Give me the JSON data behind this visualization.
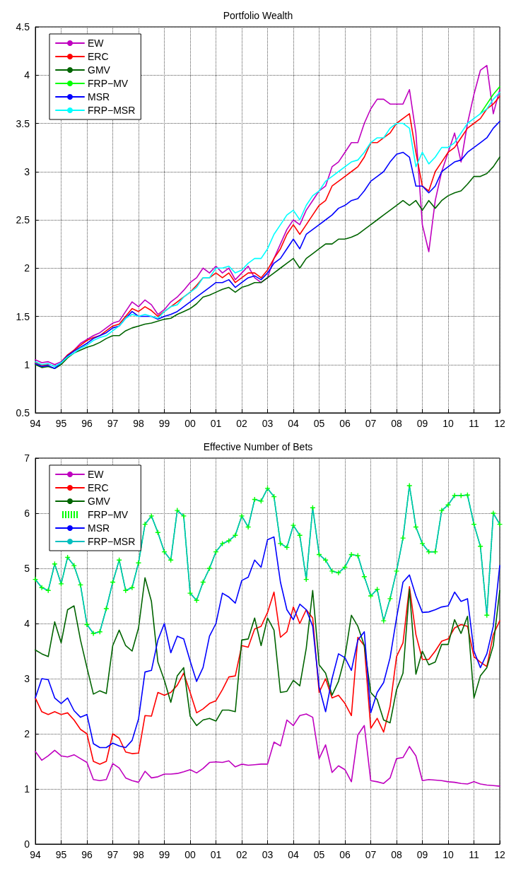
{
  "chart_data": [
    {
      "type": "line",
      "title": "Portfolio Wealth",
      "x": [
        1994,
        1994.25,
        1994.5,
        1994.75,
        1995,
        1995.25,
        1995.5,
        1995.75,
        1996,
        1996.25,
        1996.5,
        1996.75,
        1997,
        1997.25,
        1997.5,
        1997.75,
        1998,
        1998.25,
        1998.5,
        1998.75,
        1999,
        1999.25,
        1999.5,
        1999.75,
        2000,
        2000.25,
        2000.5,
        2000.75,
        2001,
        2001.25,
        2001.5,
        2001.75,
        2002,
        2002.25,
        2002.5,
        2002.75,
        2003,
        2003.25,
        2003.5,
        2003.75,
        2004,
        2004.25,
        2004.5,
        2004.75,
        2005,
        2005.25,
        2005.5,
        2005.75,
        2006,
        2006.25,
        2006.5,
        2006.75,
        2007,
        2007.25,
        2007.5,
        2007.75,
        2008,
        2008.25,
        2008.5,
        2008.75,
        2009,
        2009.25,
        2009.5,
        2009.75,
        2010,
        2010.25,
        2010.5,
        2010.75,
        2011,
        2011.25,
        2011.5,
        2011.75,
        2012
      ],
      "series": [
        {
          "name": "EW",
          "color": "#bf00bf",
          "values": [
            1.05,
            1.02,
            1.03,
            1.0,
            1.03,
            1.1,
            1.15,
            1.22,
            1.26,
            1.3,
            1.33,
            1.38,
            1.43,
            1.45,
            1.55,
            1.65,
            1.6,
            1.67,
            1.62,
            1.52,
            1.57,
            1.65,
            1.7,
            1.77,
            1.85,
            1.9,
            2.0,
            1.95,
            2.02,
            1.95,
            2.0,
            1.88,
            1.95,
            2.02,
            1.9,
            1.85,
            1.9,
            2.1,
            2.25,
            2.4,
            2.5,
            2.45,
            2.6,
            2.7,
            2.8,
            2.85,
            3.05,
            3.1,
            3.2,
            3.3,
            3.3,
            3.5,
            3.65,
            3.75,
            3.75,
            3.7,
            3.7,
            3.7,
            3.85,
            3.4,
            2.45,
            2.17,
            2.7,
            3.0,
            3.2,
            3.4,
            3.1,
            3.5,
            3.8,
            4.05,
            4.1,
            3.6,
            3.85
          ]
        },
        {
          "name": "ERC",
          "color": "#ff0000",
          "values": [
            1.02,
            0.99,
            1.0,
            null,
            1.02,
            1.1,
            1.15,
            1.2,
            1.25,
            1.28,
            1.3,
            1.35,
            1.4,
            1.42,
            1.5,
            1.58,
            1.55,
            1.6,
            1.56,
            1.5,
            1.55,
            1.6,
            1.65,
            1.7,
            1.75,
            1.82,
            1.9,
            1.9,
            1.95,
            1.9,
            1.95,
            1.85,
            1.9,
            1.95,
            1.95,
            1.9,
            1.98,
            2.1,
            2.2,
            2.35,
            2.45,
            2.35,
            2.45,
            2.55,
            2.65,
            2.7,
            2.85,
            2.9,
            2.95,
            3.0,
            3.05,
            3.15,
            3.3,
            3.3,
            3.35,
            3.4,
            3.5,
            3.55,
            3.6,
            3.2,
            2.85,
            2.8,
            3.0,
            3.1,
            3.2,
            3.25,
            3.35,
            3.45,
            3.5,
            3.55,
            3.65,
            3.7,
            3.78
          ]
        },
        {
          "name": "GMV",
          "color": "#006400",
          "values": [
            1.0,
            0.97,
            0.98,
            0.96,
            1.0,
            1.07,
            1.12,
            1.15,
            1.18,
            1.2,
            1.23,
            1.27,
            1.3,
            1.3,
            1.35,
            1.38,
            1.4,
            1.42,
            1.43,
            1.45,
            1.47,
            1.48,
            1.52,
            1.55,
            1.58,
            1.63,
            1.7,
            1.72,
            1.75,
            1.78,
            1.8,
            1.75,
            1.8,
            1.82,
            1.85,
            1.85,
            1.9,
            1.95,
            2.0,
            2.05,
            2.1,
            2.0,
            2.1,
            2.15,
            2.2,
            2.25,
            2.25,
            2.3,
            2.3,
            2.32,
            2.35,
            2.4,
            2.45,
            2.5,
            2.55,
            2.6,
            2.65,
            2.7,
            2.65,
            2.7,
            2.6,
            2.7,
            2.62,
            2.7,
            2.75,
            2.78,
            2.8,
            2.87,
            2.95,
            2.95,
            2.98,
            3.05,
            3.15
          ]
        },
        {
          "name": "FRP−MV",
          "color": "#00ff00",
          "values": [
            null,
            null,
            null,
            null,
            null,
            null,
            null,
            null,
            null,
            null,
            null,
            null,
            null,
            null,
            null,
            null,
            null,
            null,
            null,
            null,
            null,
            null,
            null,
            null,
            null,
            null,
            null,
            null,
            null,
            null,
            null,
            null,
            null,
            null,
            null,
            null,
            null,
            null,
            null,
            null,
            null,
            null,
            null,
            null,
            null,
            null,
            null,
            null,
            null,
            null,
            null,
            null,
            null,
            null,
            null,
            null,
            null,
            null,
            null,
            null,
            null,
            null,
            null,
            null,
            null,
            null,
            null,
            null,
            null,
            3.6,
            3.7,
            3.8,
            3.88
          ]
        },
        {
          "name": "MSR",
          "color": "#0000ff",
          "values": [
            1.01,
            0.98,
            0.99,
            0.96,
            1.02,
            1.09,
            1.14,
            1.18,
            1.22,
            1.27,
            1.3,
            1.33,
            1.38,
            1.4,
            1.48,
            1.55,
            1.5,
            1.5,
            1.5,
            1.47,
            1.5,
            1.52,
            1.55,
            1.6,
            1.65,
            1.7,
            1.75,
            1.8,
            1.85,
            1.85,
            1.88,
            1.8,
            1.85,
            1.9,
            1.92,
            1.88,
            1.95,
            2.05,
            2.1,
            2.2,
            2.3,
            2.2,
            2.35,
            2.4,
            2.45,
            2.5,
            2.55,
            2.62,
            2.65,
            2.7,
            2.72,
            2.8,
            2.9,
            2.95,
            3.0,
            3.1,
            3.18,
            3.2,
            3.15,
            2.85,
            2.85,
            2.78,
            2.85,
            3.0,
            3.05,
            3.1,
            3.12,
            3.2,
            3.25,
            3.3,
            3.35,
            3.45,
            3.52
          ]
        },
        {
          "name": "FRP−MSR",
          "color": "#00ffff",
          "values": [
            1.03,
            1.0,
            1.01,
            0.98,
            1.02,
            1.08,
            1.12,
            1.17,
            1.2,
            1.25,
            1.28,
            1.3,
            1.35,
            1.4,
            1.48,
            1.52,
            1.5,
            1.52,
            1.5,
            1.48,
            1.55,
            1.6,
            1.62,
            1.7,
            1.75,
            1.8,
            1.9,
            1.9,
            2.0,
            2.0,
            2.02,
            1.95,
            1.98,
            2.05,
            2.1,
            2.1,
            2.2,
            2.35,
            2.45,
            2.55,
            2.6,
            2.5,
            2.65,
            2.75,
            2.8,
            2.9,
            2.95,
            3.0,
            3.05,
            3.1,
            3.12,
            3.2,
            3.3,
            3.35,
            3.35,
            3.45,
            3.5,
            3.5,
            3.45,
            3.05,
            3.2,
            3.08,
            3.15,
            3.25,
            3.25,
            3.3,
            3.4,
            3.5,
            3.55,
            3.6,
            3.65,
            3.75,
            3.82
          ]
        }
      ],
      "xlim": [
        1994,
        2012
      ],
      "xticks": [
        {
          "value": 1994,
          "label": "94"
        },
        {
          "value": 1995,
          "label": "95"
        },
        {
          "value": 1996,
          "label": "96"
        },
        {
          "value": 1997,
          "label": "97"
        },
        {
          "value": 1998,
          "label": "98"
        },
        {
          "value": 1999,
          "label": "99"
        },
        {
          "value": 2000,
          "label": "00"
        },
        {
          "value": 2001,
          "label": "01"
        },
        {
          "value": 2002,
          "label": "02"
        },
        {
          "value": 2003,
          "label": "03"
        },
        {
          "value": 2004,
          "label": "04"
        },
        {
          "value": 2005,
          "label": "05"
        },
        {
          "value": 2006,
          "label": "06"
        },
        {
          "value": 2007,
          "label": "07"
        },
        {
          "value": 2008,
          "label": "08"
        },
        {
          "value": 2009,
          "label": "09"
        },
        {
          "value": 2010,
          "label": "10"
        },
        {
          "value": 2011,
          "label": "11"
        },
        {
          "value": 2012,
          "label": "12"
        }
      ],
      "ylim": [
        0.5,
        4.5
      ],
      "yticks": [
        0.5,
        1,
        1.5,
        2,
        2.5,
        3,
        3.5,
        4,
        4.5
      ],
      "grid": true,
      "legend": "top left",
      "marker": "none",
      "line_style": "solid"
    },
    {
      "type": "line",
      "title": "Effective Number of Bets",
      "x": [
        1994,
        1994.25,
        1994.5,
        1994.75,
        1995,
        1995.25,
        1995.5,
        1995.75,
        1996,
        1996.25,
        1996.5,
        1996.75,
        1997,
        1997.25,
        1997.5,
        1997.75,
        1998,
        1998.25,
        1998.5,
        1998.75,
        1999,
        1999.25,
        1999.5,
        1999.75,
        2000,
        2000.25,
        2000.5,
        2000.75,
        2001,
        2001.25,
        2001.5,
        2001.75,
        2002,
        2002.25,
        2002.5,
        2002.75,
        2003,
        2003.25,
        2003.5,
        2003.75,
        2004,
        2004.25,
        2004.5,
        2004.75,
        2005,
        2005.25,
        2005.5,
        2005.75,
        2006,
        2006.25,
        2006.5,
        2006.75,
        2007,
        2007.25,
        2007.5,
        2007.75,
        2008,
        2008.25,
        2008.5,
        2008.75,
        2009,
        2009.25,
        2009.5,
        2009.75,
        2010,
        2010.25,
        2010.5,
        2010.75,
        2011,
        2011.25,
        2011.5,
        2011.75,
        2012
      ],
      "series": [
        {
          "name": "EW",
          "color": "#bf00bf",
          "values": [
            1.68,
            1.52,
            1.6,
            1.7,
            1.6,
            1.58,
            1.62,
            1.55,
            1.48,
            1.17,
            1.15,
            1.17,
            1.46,
            1.38,
            1.2,
            1.15,
            1.12,
            1.32,
            1.2,
            1.22,
            1.27,
            1.27,
            1.28,
            1.31,
            1.35,
            1.29,
            1.37,
            1.48,
            1.49,
            1.48,
            1.51,
            1.4,
            1.45,
            1.43,
            1.44,
            1.45,
            1.45,
            1.85,
            1.78,
            2.25,
            2.15,
            2.33,
            2.36,
            2.3,
            1.55,
            1.8,
            1.3,
            1.42,
            1.35,
            1.13,
            1.98,
            2.15,
            1.15,
            1.13,
            1.1,
            1.2,
            1.55,
            1.57,
            1.77,
            1.6,
            1.15,
            1.17,
            1.16,
            1.15,
            1.13,
            1.12,
            1.1,
            1.09,
            1.13,
            1.09,
            1.07,
            1.06,
            1.05
          ]
        },
        {
          "name": "ERC",
          "color": "#ff0000",
          "values": [
            2.65,
            2.4,
            2.35,
            2.4,
            2.35,
            2.38,
            2.25,
            2.08,
            2.0,
            1.5,
            1.45,
            1.5,
            2.0,
            1.92,
            1.67,
            1.64,
            1.65,
            2.33,
            2.32,
            2.75,
            2.7,
            2.75,
            2.88,
            3.1,
            2.75,
            2.38,
            2.45,
            2.55,
            2.6,
            2.8,
            3.03,
            3.05,
            3.6,
            3.57,
            3.9,
            3.95,
            4.2,
            4.57,
            3.75,
            3.85,
            4.3,
            4.0,
            4.25,
            4.1,
            2.75,
            3.0,
            2.65,
            2.7,
            2.55,
            2.33,
            3.75,
            3.6,
            2.1,
            2.28,
            2.03,
            2.5,
            3.4,
            3.65,
            4.67,
            3.8,
            3.35,
            3.35,
            3.5,
            3.68,
            3.72,
            3.92,
            3.98,
            3.95,
            3.4,
            3.3,
            3.22,
            3.8,
            4.05
          ]
        },
        {
          "name": "GMV",
          "color": "#006400",
          "values": [
            3.52,
            3.45,
            3.4,
            4.03,
            3.65,
            4.25,
            4.32,
            3.7,
            3.2,
            2.72,
            2.78,
            2.73,
            3.6,
            3.88,
            3.6,
            3.5,
            3.92,
            4.83,
            4.4,
            3.3,
            2.97,
            2.57,
            3.05,
            3.2,
            2.32,
            2.15,
            2.25,
            2.28,
            2.23,
            2.43,
            2.43,
            2.4,
            3.7,
            3.72,
            4.1,
            3.6,
            4.1,
            3.88,
            2.75,
            2.77,
            2.97,
            2.87,
            3.55,
            4.6,
            3.25,
            3.1,
            2.7,
            2.95,
            3.4,
            4.15,
            3.95,
            3.6,
            2.75,
            2.62,
            2.25,
            2.2,
            2.8,
            3.1,
            4.62,
            3.08,
            3.5,
            3.25,
            3.3,
            3.62,
            3.62,
            4.07,
            3.82,
            4.13,
            2.65,
            3.05,
            3.2,
            3.6,
            4.6
          ]
        },
        {
          "name": "FRP−MV",
          "color": "#00ff00",
          "marker": "cross",
          "line_style": "dotted",
          "values": [
            4.8,
            4.65,
            4.6,
            5.08,
            4.72,
            5.2,
            5.05,
            4.7,
            3.98,
            3.82,
            3.85,
            4.27,
            4.75,
            5.15,
            4.6,
            4.65,
            5.1,
            5.8,
            5.95,
            5.65,
            5.3,
            5.15,
            6.05,
            5.95,
            4.55,
            4.42,
            4.75,
            5.0,
            5.3,
            5.45,
            5.5,
            5.6,
            5.95,
            5.75,
            6.25,
            6.22,
            6.45,
            6.3,
            5.45,
            5.38,
            5.78,
            5.6,
            4.8,
            6.1,
            5.25,
            5.15,
            4.95,
            4.92,
            5.02,
            5.25,
            5.23,
            4.85,
            4.5,
            4.62,
            4.05,
            4.45,
            4.95,
            5.55,
            6.5,
            5.75,
            5.45,
            5.3,
            5.3,
            6.05,
            6.15,
            6.32,
            6.32,
            6.33,
            5.8,
            5.4,
            4.15,
            6.0,
            5.8
          ]
        },
        {
          "name": "MSR",
          "color": "#0000ff",
          "values": [
            2.65,
            3.0,
            2.98,
            2.65,
            2.55,
            2.65,
            2.42,
            2.3,
            2.35,
            1.82,
            1.75,
            1.75,
            1.83,
            1.78,
            1.75,
            1.88,
            2.27,
            3.12,
            3.15,
            3.7,
            4.0,
            3.47,
            3.77,
            3.72,
            3.32,
            2.95,
            3.2,
            3.77,
            4.0,
            4.55,
            4.48,
            4.37,
            4.78,
            4.84,
            5.15,
            5.02,
            5.52,
            5.57,
            4.75,
            4.25,
            4.07,
            4.35,
            4.25,
            3.95,
            2.85,
            2.4,
            3.0,
            3.45,
            3.38,
            3.15,
            3.7,
            3.85,
            2.38,
            2.75,
            2.93,
            3.38,
            4.1,
            4.75,
            4.88,
            4.5,
            4.2,
            4.21,
            4.25,
            4.3,
            4.32,
            4.57,
            4.4,
            4.45,
            3.5,
            3.2,
            3.45,
            3.95,
            5.05
          ]
        },
        {
          "name": "FRP−MSR",
          "color": "#00bfbf",
          "values": [
            4.8,
            4.65,
            4.6,
            5.08,
            4.72,
            5.2,
            5.05,
            4.7,
            3.98,
            3.82,
            3.85,
            4.27,
            4.75,
            5.15,
            4.6,
            4.65,
            5.1,
            5.8,
            5.95,
            5.65,
            5.3,
            5.15,
            6.05,
            5.95,
            4.55,
            4.42,
            4.75,
            5.0,
            5.3,
            5.45,
            5.5,
            5.6,
            5.95,
            5.75,
            6.25,
            6.22,
            6.45,
            6.3,
            5.45,
            5.38,
            5.78,
            5.6,
            4.8,
            6.1,
            5.25,
            5.15,
            4.95,
            4.92,
            5.02,
            5.25,
            5.23,
            4.85,
            4.5,
            4.62,
            4.05,
            4.45,
            4.95,
            5.55,
            6.5,
            5.75,
            5.45,
            5.3,
            5.3,
            6.05,
            6.15,
            6.32,
            6.32,
            6.33,
            5.8,
            5.4,
            4.15,
            6.0,
            5.8
          ]
        }
      ],
      "xlim": [
        1994,
        2012
      ],
      "xticks": [
        {
          "value": 1994,
          "label": "94"
        },
        {
          "value": 1995,
          "label": "95"
        },
        {
          "value": 1996,
          "label": "96"
        },
        {
          "value": 1997,
          "label": "97"
        },
        {
          "value": 1998,
          "label": "98"
        },
        {
          "value": 1999,
          "label": "99"
        },
        {
          "value": 2000,
          "label": "00"
        },
        {
          "value": 2001,
          "label": "01"
        },
        {
          "value": 2002,
          "label": "02"
        },
        {
          "value": 2003,
          "label": "03"
        },
        {
          "value": 2004,
          "label": "04"
        },
        {
          "value": 2005,
          "label": "05"
        },
        {
          "value": 2006,
          "label": "06"
        },
        {
          "value": 2007,
          "label": "07"
        },
        {
          "value": 2008,
          "label": "08"
        },
        {
          "value": 2009,
          "label": "09"
        },
        {
          "value": 2010,
          "label": "10"
        },
        {
          "value": 2011,
          "label": "11"
        },
        {
          "value": 2012,
          "label": "12"
        }
      ],
      "ylim": [
        0,
        7
      ],
      "yticks": [
        0,
        1,
        2,
        3,
        4,
        5,
        6,
        7
      ],
      "grid": true,
      "legend": "top left",
      "marker": "none",
      "line_style": "solid"
    }
  ]
}
